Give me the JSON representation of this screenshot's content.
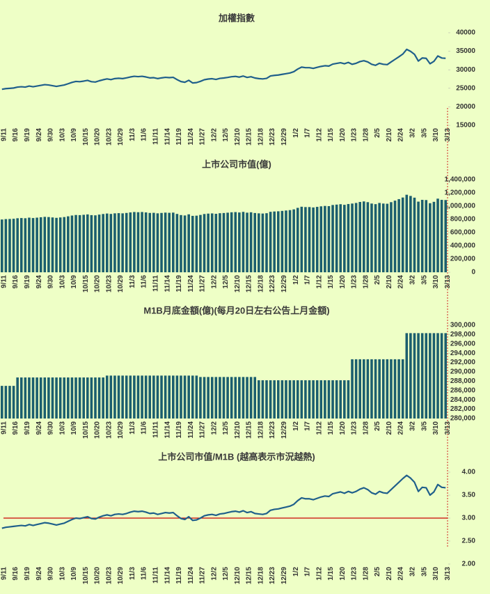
{
  "chart_data": [
    {
      "type": "line",
      "title": "加權指數",
      "color": "#1f5f8b",
      "categories": [
        "9/11",
        null,
        null,
        "9/16",
        null,
        null,
        "9/19",
        null,
        null,
        "9/24",
        null,
        null,
        "9/30",
        null,
        null,
        "10/3",
        null,
        null,
        "10/9",
        null,
        null,
        "10/15",
        null,
        null,
        "10/20",
        null,
        null,
        "10/23",
        null,
        null,
        "10/29",
        null,
        null,
        "11/3",
        null,
        null,
        "11/6",
        null,
        null,
        "11/11",
        null,
        null,
        "11/14",
        null,
        null,
        "11/19",
        null,
        null,
        "11/24",
        null,
        null,
        "11/27",
        null,
        null,
        "12/2",
        null,
        null,
        "12/5",
        null,
        null,
        "12/10",
        null,
        null,
        "12/15",
        null,
        null,
        "12/18",
        null,
        null,
        "12/23",
        null,
        null,
        "12/29",
        null,
        null,
        "1/2",
        null,
        null,
        "1/7",
        null,
        null,
        "1/12",
        null,
        null,
        "1/15",
        null,
        null,
        "1/20",
        null,
        null,
        "1/23",
        null,
        null,
        "1/28",
        null,
        null,
        "2/5",
        null,
        null,
        "2/10",
        null,
        null,
        "2/24",
        null,
        null,
        "3/2",
        null,
        null,
        "3/5",
        null,
        null,
        "3/10",
        null,
        null,
        "3/13"
      ],
      "values": [
        24740,
        24920,
        24990,
        25080,
        25330,
        25420,
        25330,
        25610,
        25420,
        25610,
        25790,
        25980,
        25890,
        25700,
        25510,
        25700,
        25890,
        26230,
        26600,
        26850,
        26780,
        26940,
        27130,
        26780,
        26690,
        27030,
        27310,
        27530,
        27340,
        27620,
        27710,
        27620,
        27810,
        28060,
        28240,
        28150,
        28240,
        28060,
        27810,
        27870,
        27620,
        27810,
        27960,
        27870,
        27960,
        27340,
        26820,
        26630,
        27160,
        26440,
        26540,
        26880,
        27310,
        27500,
        27590,
        27400,
        27680,
        27780,
        27930,
        28120,
        28210,
        28020,
        28300,
        27930,
        28120,
        27780,
        27620,
        27530,
        27680,
        28330,
        28490,
        28580,
        28770,
        28950,
        29140,
        29480,
        30190,
        30720,
        30570,
        30570,
        30380,
        30660,
        30910,
        31090,
        31000,
        31530,
        31710,
        31900,
        31620,
        31990,
        31480,
        31750,
        32210,
        32450,
        32120,
        31480,
        31210,
        31750,
        31480,
        31390,
        32120,
        32810,
        33510,
        34240,
        35510,
        34970,
        34180,
        32360,
        33180,
        33090,
        31630,
        32270,
        33720,
        33180,
        33090
      ],
      "ylim": [
        15000,
        40000
      ],
      "yticks": [
        15000,
        20000,
        25000,
        30000,
        35000,
        40000
      ]
    },
    {
      "type": "bar",
      "title": "上市公司市值(億)",
      "color": "#1b5e6e",
      "categories": [
        "9/11",
        null,
        null,
        "9/16",
        null,
        null,
        "9/19",
        null,
        null,
        "9/24",
        null,
        null,
        "9/30",
        null,
        null,
        "10/3",
        null,
        null,
        "10/9",
        null,
        null,
        "10/15",
        null,
        null,
        "10/20",
        null,
        null,
        "10/23",
        null,
        null,
        "10/29",
        null,
        null,
        "11/3",
        null,
        null,
        "11/6",
        null,
        null,
        "11/11",
        null,
        null,
        "11/14",
        null,
        null,
        "11/19",
        null,
        null,
        "11/24",
        null,
        null,
        "11/27",
        null,
        null,
        "12/2",
        null,
        null,
        "12/5",
        null,
        null,
        "12/10",
        null,
        null,
        "12/15",
        null,
        null,
        "12/18",
        null,
        null,
        "12/23",
        null,
        null,
        "12/29",
        null,
        null,
        "1/2",
        null,
        null,
        "1/7",
        null,
        null,
        "1/12",
        null,
        null,
        "1/15",
        null,
        null,
        "1/20",
        null,
        null,
        "1/23",
        null,
        null,
        "1/28",
        null,
        null,
        "2/5",
        null,
        null,
        "2/10",
        null,
        null,
        "2/24",
        null,
        null,
        "3/2",
        null,
        null,
        "3/5",
        null,
        null,
        "3/10",
        null,
        null,
        "3/13"
      ],
      "values": [
        798000,
        804000,
        806000,
        809000,
        817000,
        820000,
        817000,
        826000,
        820000,
        826000,
        832000,
        838000,
        835000,
        829000,
        823000,
        829000,
        835000,
        846000,
        858000,
        866000,
        864000,
        869000,
        875000,
        864000,
        861000,
        872000,
        881000,
        888000,
        882000,
        891000,
        894000,
        891000,
        897000,
        905000,
        911000,
        908000,
        911000,
        905000,
        897000,
        899000,
        891000,
        897000,
        902000,
        899000,
        902000,
        882000,
        865000,
        859000,
        876000,
        853000,
        856000,
        867000,
        881000,
        887000,
        890000,
        884000,
        893000,
        896000,
        901000,
        907000,
        910000,
        904000,
        913000,
        901000,
        907000,
        896000,
        891000,
        888000,
        893000,
        914000,
        919000,
        922000,
        928000,
        934000,
        940000,
        951000,
        974000,
        991000,
        986000,
        986000,
        980000,
        989000,
        997000,
        1003000,
        1000000,
        1017000,
        1023000,
        1029000,
        1020000,
        1032000,
        1039000,
        1048000,
        1063000,
        1071000,
        1060000,
        1039000,
        1030000,
        1048000,
        1039000,
        1036000,
        1060000,
        1083000,
        1106000,
        1130000,
        1172000,
        1154000,
        1128000,
        1068000,
        1095000,
        1092000,
        1044000,
        1065000,
        1113000,
        1095000,
        1092000
      ],
      "ylim": [
        0,
        1400000
      ],
      "yticks": [
        0,
        {
          "value": 200000,
          "label": "200,000"
        },
        {
          "value": 400000,
          "label": "400,000"
        },
        {
          "value": 600000,
          "label": "600,000"
        },
        {
          "value": 800000,
          "label": "800,000"
        },
        {
          "value": 1000000,
          "label": "1,000,000"
        },
        {
          "value": 1200000,
          "label": "1,200,000"
        },
        {
          "value": 1400000,
          "label": "1,400,000"
        }
      ]
    },
    {
      "type": "bar",
      "title": "M1B月底金額(億)(每月20日左右公告上月金額)",
      "color": "#1b5e6e",
      "categories": [
        "9/11",
        null,
        null,
        "9/16",
        null,
        null,
        "9/19",
        null,
        null,
        "9/24",
        null,
        null,
        "9/30",
        null,
        null,
        "10/3",
        null,
        null,
        "10/9",
        null,
        null,
        "10/15",
        null,
        null,
        "10/20",
        null,
        null,
        "10/23",
        null,
        null,
        "10/29",
        null,
        null,
        "11/3",
        null,
        null,
        "11/6",
        null,
        null,
        "11/11",
        null,
        null,
        "11/14",
        null,
        null,
        "11/19",
        null,
        null,
        "11/24",
        null,
        null,
        "11/27",
        null,
        null,
        "12/2",
        null,
        null,
        "12/5",
        null,
        null,
        "12/10",
        null,
        null,
        "12/15",
        null,
        null,
        "12/18",
        null,
        null,
        "12/23",
        null,
        null,
        "12/29",
        null,
        null,
        "1/2",
        null,
        null,
        "1/7",
        null,
        null,
        "1/12",
        null,
        null,
        "1/15",
        null,
        null,
        "1/20",
        null,
        null,
        "1/23",
        null,
        null,
        "1/28",
        null,
        null,
        "2/5",
        null,
        null,
        "2/10",
        null,
        null,
        "2/24",
        null,
        null,
        "3/2",
        null,
        null,
        "3/5",
        null,
        null,
        "3/10",
        null,
        null,
        "3/13"
      ],
      "values": [
        287000,
        287000,
        287000,
        287000,
        288800,
        288800,
        288800,
        288800,
        288800,
        288800,
        288800,
        288800,
        288800,
        288800,
        288800,
        288800,
        288800,
        288800,
        288800,
        288800,
        288800,
        288800,
        288800,
        288800,
        288800,
        288800,
        288800,
        289200,
        289200,
        289200,
        289200,
        289200,
        289200,
        289200,
        289200,
        289200,
        289200,
        289200,
        289200,
        289200,
        289200,
        289200,
        289200,
        289200,
        289200,
        289200,
        289200,
        289200,
        289200,
        289200,
        289200,
        288900,
        288900,
        288900,
        288900,
        288900,
        288900,
        288900,
        288900,
        288900,
        288900,
        288900,
        288900,
        288900,
        288900,
        288900,
        288200,
        288200,
        288200,
        288200,
        288200,
        288200,
        288200,
        288200,
        288200,
        288200,
        288200,
        288200,
        288200,
        288200,
        288200,
        288200,
        288200,
        288200,
        288200,
        288200,
        288200,
        288200,
        288200,
        288200,
        292700,
        292700,
        292700,
        292700,
        292700,
        292700,
        292700,
        292700,
        292700,
        292700,
        292700,
        292700,
        292700,
        292700,
        298300,
        298300,
        298300,
        298300,
        298300,
        298300,
        298300,
        298300,
        298300,
        298300,
        298300
      ],
      "ylim": [
        280000,
        300000
      ],
      "yticks": [
        {
          "value": 280000,
          "label": "280,000"
        },
        {
          "value": 282000,
          "label": "282,000"
        },
        {
          "value": 284000,
          "label": "284,000"
        },
        {
          "value": 286000,
          "label": "286,000"
        },
        {
          "value": 288000,
          "label": "288,000"
        },
        {
          "value": 290000,
          "label": "290,000"
        },
        {
          "value": 292000,
          "label": "292,000"
        },
        {
          "value": 294000,
          "label": "294,000"
        },
        {
          "value": 296000,
          "label": "296,000"
        },
        {
          "value": 298000,
          "label": "298,000"
        },
        {
          "value": 300000,
          "label": "300,000"
        }
      ]
    },
    {
      "type": "line",
      "title": "上市公司市值/M1B (越高表示市況越熱)",
      "color": "#1f5f8b",
      "categories": [
        "9/11",
        null,
        null,
        "9/16",
        null,
        null,
        "9/19",
        null,
        null,
        "9/24",
        null,
        null,
        "9/30",
        null,
        null,
        "10/3",
        null,
        null,
        "10/9",
        null,
        null,
        "10/15",
        null,
        null,
        "10/20",
        null,
        null,
        "10/23",
        null,
        null,
        "10/29",
        null,
        null,
        "11/3",
        null,
        null,
        "11/6",
        null,
        null,
        "11/11",
        null,
        null,
        "11/14",
        null,
        null,
        "11/19",
        null,
        null,
        "11/24",
        null,
        null,
        "11/27",
        null,
        null,
        "12/2",
        null,
        null,
        "12/5",
        null,
        null,
        "12/10",
        null,
        null,
        "12/15",
        null,
        null,
        "12/18",
        null,
        null,
        "12/23",
        null,
        null,
        "12/29",
        null,
        null,
        "1/2",
        null,
        null,
        "1/7",
        null,
        null,
        "1/12",
        null,
        null,
        "1/15",
        null,
        null,
        "1/20",
        null,
        null,
        "1/23",
        null,
        null,
        "1/28",
        null,
        null,
        "2/5",
        null,
        null,
        "2/10",
        null,
        null,
        "2/24",
        null,
        null,
        "3/2",
        null,
        null,
        "3/5",
        null,
        null,
        "3/10",
        null,
        null,
        "3/13"
      ],
      "values": [
        2.78,
        2.8,
        2.81,
        2.82,
        2.83,
        2.84,
        2.83,
        2.86,
        2.84,
        2.86,
        2.88,
        2.9,
        2.89,
        2.87,
        2.85,
        2.87,
        2.89,
        2.93,
        2.97,
        3.0,
        2.99,
        3.01,
        3.03,
        2.99,
        2.98,
        3.02,
        3.05,
        3.07,
        3.05,
        3.08,
        3.09,
        3.08,
        3.1,
        3.13,
        3.15,
        3.14,
        3.15,
        3.13,
        3.1,
        3.11,
        3.08,
        3.1,
        3.12,
        3.11,
        3.12,
        3.05,
        2.99,
        2.97,
        3.03,
        2.95,
        2.96,
        3.0,
        3.05,
        3.07,
        3.08,
        3.06,
        3.09,
        3.1,
        3.12,
        3.14,
        3.15,
        3.13,
        3.16,
        3.12,
        3.14,
        3.1,
        3.09,
        3.08,
        3.1,
        3.17,
        3.19,
        3.2,
        3.22,
        3.24,
        3.26,
        3.3,
        3.38,
        3.44,
        3.42,
        3.42,
        3.4,
        3.43,
        3.46,
        3.48,
        3.47,
        3.53,
        3.55,
        3.57,
        3.54,
        3.58,
        3.55,
        3.58,
        3.63,
        3.66,
        3.62,
        3.55,
        3.52,
        3.58,
        3.55,
        3.54,
        3.62,
        3.7,
        3.78,
        3.86,
        3.93,
        3.87,
        3.78,
        3.58,
        3.67,
        3.66,
        3.5,
        3.57,
        3.73,
        3.67,
        3.66
      ],
      "ylim": [
        2,
        4
      ],
      "yticks": [
        {
          "value": 2,
          "label": "2.00"
        },
        {
          "value": 2.5,
          "label": "2.50"
        },
        {
          "value": 3,
          "label": "3.00"
        },
        {
          "value": 3.5,
          "label": "3.50"
        },
        {
          "value": 4,
          "label": "4.00"
        }
      ],
      "hline": 3,
      "hline_color": "#cc0000"
    }
  ]
}
